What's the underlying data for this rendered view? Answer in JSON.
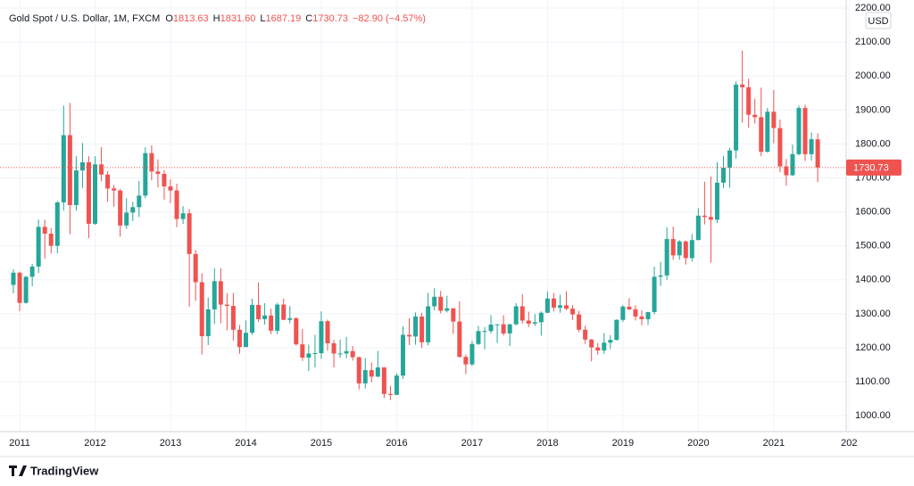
{
  "chart_data": {
    "type": "candlestick",
    "title": "Gold Spot / U.S. Dollar, 1M, FXCM",
    "ohlc_legend": [
      {
        "label": "O",
        "value": "1813.63"
      },
      {
        "label": "H",
        "value": "1831.60"
      },
      {
        "label": "L",
        "value": "1687.19"
      },
      {
        "label": "C",
        "value": "1730.73"
      }
    ],
    "change": "−82.90 (−4.57%)",
    "currency": "USD",
    "brand": "TradingView",
    "up_color": "#26a69a",
    "down_color": "#ef5350",
    "grid": true,
    "ylim": [
      953,
      2224
    ],
    "yticks": [
      {
        "value": 1000,
        "label": "1000.00"
      },
      {
        "value": 1100,
        "label": "1100.00"
      },
      {
        "value": 1200,
        "label": "1200.00"
      },
      {
        "value": 1300,
        "label": "1300.00"
      },
      {
        "value": 1400,
        "label": "1400.00"
      },
      {
        "value": 1500,
        "label": "1500.00"
      },
      {
        "value": 1600,
        "label": "1600.00"
      },
      {
        "value": 1700,
        "label": "1700.00"
      },
      {
        "value": 1800,
        "label": "1800.00"
      },
      {
        "value": 1900,
        "label": "1900.00"
      },
      {
        "value": 2000,
        "label": "2000.00"
      },
      {
        "value": 2100,
        "label": "2100.00"
      },
      {
        "value": 2200,
        "label": "2200.00"
      }
    ],
    "categories": [
      null,
      "2011",
      null,
      null,
      null,
      null,
      null,
      null,
      null,
      null,
      null,
      null,
      null,
      "2012",
      null,
      null,
      null,
      null,
      null,
      null,
      null,
      null,
      null,
      null,
      null,
      "2013",
      null,
      null,
      null,
      null,
      null,
      null,
      null,
      null,
      null,
      null,
      null,
      "2014",
      null,
      null,
      null,
      null,
      null,
      null,
      null,
      null,
      null,
      null,
      null,
      "2015",
      null,
      null,
      null,
      null,
      null,
      null,
      null,
      null,
      null,
      null,
      null,
      "2016",
      null,
      null,
      null,
      null,
      null,
      null,
      null,
      null,
      null,
      null,
      null,
      "2017",
      null,
      null,
      null,
      null,
      null,
      null,
      null,
      null,
      null,
      null,
      null,
      "2018",
      null,
      null,
      null,
      null,
      null,
      null,
      null,
      null,
      null,
      null,
      null,
      "2019",
      null,
      null,
      null,
      null,
      null,
      null,
      null,
      null,
      null,
      null,
      null,
      "2020",
      null,
      null,
      null,
      null,
      null,
      null,
      null,
      null,
      null,
      null,
      null,
      "2021",
      null,
      null,
      null,
      null,
      null,
      null,
      null,
      null,
      null,
      null,
      null,
      "202"
    ],
    "open": [
      1385,
      1421,
      1332,
      1409,
      1439,
      1556,
      1536,
      1500,
      1628,
      1826,
      1620,
      1722,
      1746,
      1565,
      1740,
      1710,
      1669,
      1663,
      1560,
      1598,
      1614,
      1648,
      1773,
      1719,
      1712,
      1675,
      1663,
      1579,
      1596,
      1476,
      1393,
      1234,
      1313,
      1396,
      1327,
      1323,
      1253,
      1202,
      1244,
      1326,
      1284,
      1295,
      1250,
      1327,
      1282,
      1287,
      1210,
      1171,
      1183,
      1184,
      1278,
      1213,
      1183,
      1183,
      1190,
      1172,
      1095,
      1134,
      1115,
      1142,
      1064,
      1061,
      1118,
      1238,
      1233,
      1292,
      1216,
      1322,
      1350,
      1309,
      1316,
      1277,
      1173,
      1151,
      1211,
      1249,
      1249,
      1268,
      1269,
      1242,
      1269,
      1322,
      1280,
      1271,
      1275,
      1303,
      1345,
      1318,
      1325,
      1315,
      1298,
      1253,
      1224,
      1201,
      1192,
      1215,
      1223,
      1282,
      1321,
      1313,
      1292,
      1284,
      1305,
      1409,
      1413,
      1520,
      1472,
      1513,
      1464,
      1517,
      1589,
      1585,
      1577,
      1686,
      1730,
      1781,
      1975,
      1967,
      1886,
      1879,
      1777,
      1895,
      1847,
      1734,
      1708,
      1770,
      1906,
      1770,
      1813.63,
      null,
      null,
      null,
      null,
      null
    ],
    "high": [
      1431,
      1424,
      1411,
      1447,
      1577,
      1577,
      1552,
      1632,
      1913,
      1921,
      1764,
      1803,
      1764,
      1764,
      1791,
      1720,
      1679,
      1668,
      1640,
      1630,
      1691,
      1790,
      1796,
      1755,
      1723,
      1696,
      1683,
      1617,
      1608,
      1488,
      1419,
      1348,
      1434,
      1434,
      1361,
      1361,
      1267,
      1280,
      1345,
      1392,
      1331,
      1315,
      1332,
      1345,
      1323,
      1290,
      1255,
      1209,
      1238,
      1307,
      1283,
      1223,
      1224,
      1232,
      1205,
      1174,
      1170,
      1157,
      1191,
      1143,
      1088,
      1125,
      1263,
      1287,
      1304,
      1303,
      1362,
      1375,
      1367,
      1353,
      1317,
      1337,
      1180,
      1220,
      1264,
      1261,
      1296,
      1269,
      1296,
      1270,
      1331,
      1358,
      1306,
      1299,
      1307,
      1366,
      1361,
      1356,
      1366,
      1326,
      1309,
      1265,
      1226,
      1214,
      1243,
      1237,
      1284,
      1326,
      1346,
      1325,
      1310,
      1306,
      1439,
      1453,
      1555,
      1557,
      1517,
      1516,
      1535,
      1611,
      1689,
      1704,
      1747,
      1765,
      1789,
      1984,
      2075,
      1992,
      1933,
      1966,
      1906,
      1959,
      1872,
      1756,
      1798,
      1913,
      1916,
      1834,
      1831.6,
      null,
      null,
      null,
      null,
      null
    ],
    "low": [
      1360,
      1308,
      1330,
      1381,
      1420,
      1462,
      1478,
      1478,
      1604,
      1534,
      1604,
      1670,
      1523,
      1562,
      1690,
      1630,
      1615,
      1527,
      1550,
      1573,
      1585,
      1640,
      1693,
      1672,
      1636,
      1626,
      1555,
      1565,
      1321,
      1338,
      1180,
      1208,
      1270,
      1272,
      1251,
      1221,
      1182,
      1202,
      1238,
      1277,
      1268,
      1240,
      1240,
      1282,
      1272,
      1206,
      1161,
      1131,
      1142,
      1167,
      1191,
      1142,
      1170,
      1169,
      1162,
      1077,
      1080,
      1098,
      1113,
      1052,
      1046,
      1062,
      1108,
      1208,
      1209,
      1199,
      1207,
      1310,
      1301,
      1304,
      1241,
      1171,
      1122,
      1146,
      1208,
      1195,
      1242,
      1214,
      1236,
      1205,
      1266,
      1271,
      1261,
      1264,
      1236,
      1302,
      1307,
      1303,
      1310,
      1282,
      1246,
      1211,
      1160,
      1180,
      1182,
      1196,
      1221,
      1276,
      1311,
      1280,
      1266,
      1267,
      1298,
      1382,
      1400,
      1459,
      1459,
      1445,
      1454,
      1517,
      1563,
      1451,
      1567,
      1670,
      1671,
      1757,
      1863,
      1848,
      1860,
      1764,
      1775,
      1802,
      1717,
      1677,
      1706,
      1766,
      1750,
      1751,
      1687.19,
      null,
      null,
      null,
      null,
      null
    ],
    "close": [
      1421,
      1332,
      1409,
      1439,
      1556,
      1536,
      1500,
      1628,
      1826,
      1620,
      1722,
      1746,
      1565,
      1740,
      1710,
      1669,
      1663,
      1560,
      1598,
      1614,
      1648,
      1773,
      1719,
      1712,
      1675,
      1663,
      1579,
      1596,
      1476,
      1393,
      1234,
      1313,
      1396,
      1327,
      1323,
      1253,
      1202,
      1244,
      1326,
      1284,
      1295,
      1250,
      1327,
      1282,
      1287,
      1210,
      1171,
      1183,
      1184,
      1278,
      1213,
      1183,
      1183,
      1190,
      1172,
      1095,
      1134,
      1115,
      1142,
      1064,
      1061,
      1118,
      1238,
      1233,
      1292,
      1216,
      1322,
      1350,
      1309,
      1316,
      1277,
      1173,
      1151,
      1211,
      1249,
      1249,
      1268,
      1269,
      1242,
      1269,
      1322,
      1280,
      1271,
      1275,
      1303,
      1345,
      1318,
      1325,
      1315,
      1298,
      1253,
      1224,
      1201,
      1192,
      1215,
      1223,
      1282,
      1321,
      1313,
      1292,
      1284,
      1305,
      1409,
      1413,
      1520,
      1472,
      1513,
      1464,
      1517,
      1589,
      1585,
      1577,
      1686,
      1730,
      1781,
      1975,
      1967,
      1886,
      1879,
      1777,
      1895,
      1847,
      1734,
      1708,
      1770,
      1906,
      1770,
      1814,
      1730.73,
      null,
      null,
      null,
      null,
      null
    ]
  }
}
